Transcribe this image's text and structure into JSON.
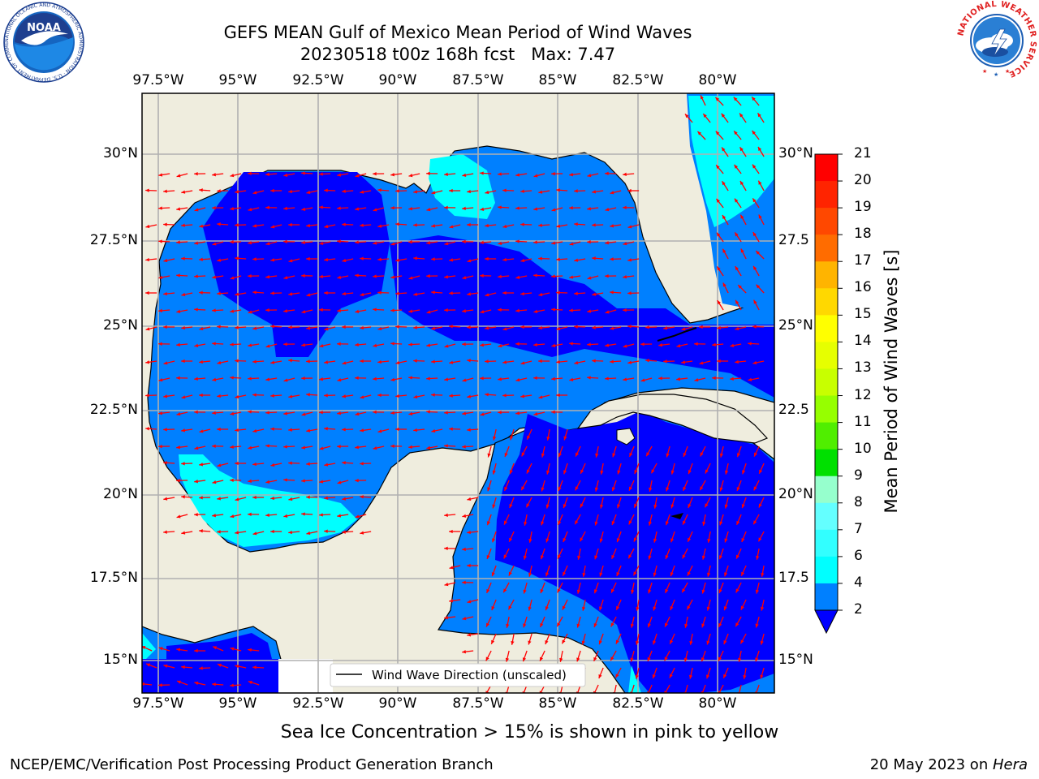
{
  "title": {
    "line1": "GEFS MEAN Gulf of Mexico Mean Period of Wind Waves",
    "line2": "20230518 t00z 168h fcst   Max: 7.47"
  },
  "lon_ticks": [
    "97.5°W",
    "95°W",
    "92.5°W",
    "90°W",
    "87.5°W",
    "85°W",
    "82.5°W",
    "80°W"
  ],
  "lat_ticks_left": [
    "30°N",
    "27.5°N",
    "25°N",
    "22.5°N",
    "20°N",
    "17.5°N",
    "15°N"
  ],
  "lat_ticks_right": [
    "30°N",
    "27.5",
    "25°N",
    "22.5",
    "20°N",
    "17.5",
    "15°N"
  ],
  "colorbar": {
    "label": "Mean Period of Wind Waves [s]",
    "ticks": [
      "21",
      "20",
      "19",
      "18",
      "17",
      "16",
      "15",
      "14",
      "13",
      "12",
      "11",
      "10",
      "9",
      "8",
      "7",
      "6",
      "4",
      "2"
    ],
    "colors": [
      "#ff0000",
      "#ff2400",
      "#ff4800",
      "#ff6c00",
      "#ff9000",
      "#ffb400",
      "#ffd800",
      "#ffff00",
      "#e6ff00",
      "#c8ff00",
      "#96ff00",
      "#50ee00",
      "#00e000",
      "#50ff7d",
      "#96ffcd",
      "#64ffff",
      "#32ffff",
      "#00ffff",
      "#0080ff"
    ],
    "under_color": "#0000ff"
  },
  "legend": {
    "label": "Wind Wave Direction (unscaled)"
  },
  "subtitle": "Sea Ice Concentration > 15% is shown in pink to yellow",
  "footer": {
    "left": "NCEP/EMC/Verification Post Processing Product Generation Branch",
    "right_prefix": "20 May 2023 on ",
    "right_host": "Hera"
  },
  "logos": {
    "noaa_text": "NOAA",
    "noaa_ring": "NATIONAL OCEANIC AND ATMOSPHERIC ADMINISTRATION · U.S. DEPARTMENT OF COMMERCE",
    "nws_ring": "NATIONAL WEATHER SERVICE"
  },
  "colors": {
    "land": "#efedde",
    "grid": "#b0b0b0",
    "arrow": "#ff0000",
    "coast": "#000000"
  }
}
